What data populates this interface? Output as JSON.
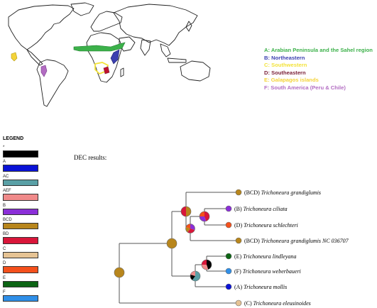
{
  "regions_legend": [
    {
      "id": "A",
      "text": "A: Arabian Peninsula and the Sahel region",
      "color": "#3cb14a"
    },
    {
      "id": "B",
      "text": "B: Northeastern",
      "color": "#3b3fb0"
    },
    {
      "id": "C",
      "text": "C: Southwestern",
      "color": "#f3e33a"
    },
    {
      "id": "D",
      "text": "D: Southeastern",
      "color": "#7a1f37"
    },
    {
      "id": "E",
      "text": "E: Galapagos islands",
      "color": "#f4d33a"
    },
    {
      "id": "F",
      "text": "F: South America (Peru & Chile)",
      "color": "#b26cc2"
    }
  ],
  "state_legend": {
    "title": "LEGEND",
    "items": [
      {
        "label": "*",
        "color": "#000000"
      },
      {
        "label": "A",
        "color": "#0a12d6"
      },
      {
        "label": "AC",
        "color": "#5aa0a6"
      },
      {
        "label": "AEF",
        "color": "#f08a8a"
      },
      {
        "label": "B",
        "color": "#8b2fd8"
      },
      {
        "label": "BCD",
        "color": "#b8861c"
      },
      {
        "label": "BD",
        "color": "#d9163a"
      },
      {
        "label": "C",
        "color": "#e6c394"
      },
      {
        "label": "D",
        "color": "#f4501c"
      },
      {
        "label": "E",
        "color": "#0c6414"
      },
      {
        "label": "F",
        "color": "#2f8fe8"
      }
    ]
  },
  "dec_title": "DEC results:",
  "tree": {
    "tips": [
      {
        "code": "(BCD)",
        "species": "Trichoneura grandiglumis",
        "state": "BCD"
      },
      {
        "code": "(B)",
        "species": "Trichoneura ciliata",
        "state": "B"
      },
      {
        "code": "(D)",
        "species": "Trichoneura schlechteri",
        "state": "D"
      },
      {
        "code": "(BCD)",
        "species": "Trichoneura grandiglumis NC 036707",
        "state": "BCD"
      },
      {
        "code": "(E)",
        "species": "Trichoneura lindleyana",
        "state": "E"
      },
      {
        "code": "(F)",
        "species": "Trichoneura weberbaueri",
        "state": "F"
      },
      {
        "code": "(A)",
        "species": "Trichoneura mollis",
        "state": "A"
      },
      {
        "code": "(C)",
        "species": "Trichoneura eleusinoides",
        "state": "C"
      }
    ]
  }
}
